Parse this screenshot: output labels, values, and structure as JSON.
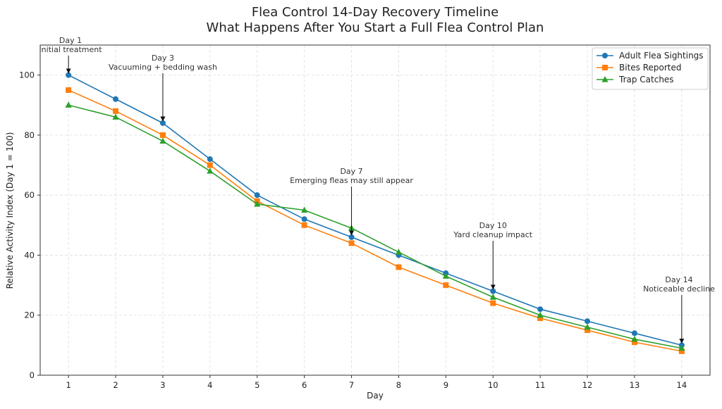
{
  "chart_data": {
    "type": "line",
    "title": "Flea Control 14-Day Recovery Timeline",
    "subtitle": "What Happens After You Start a Full Flea Control Plan",
    "xlabel": "Day",
    "ylabel": "Relative Activity Index (Day 1 = 100)",
    "x": [
      1,
      2,
      3,
      4,
      5,
      6,
      7,
      8,
      9,
      10,
      11,
      12,
      13,
      14
    ],
    "xlim": [
      0.4,
      14.6
    ],
    "ylim": [
      0,
      110
    ],
    "yticks": [
      0,
      20,
      40,
      60,
      80,
      100
    ],
    "grid": true,
    "legend_position": "top-right",
    "series": [
      {
        "name": "Adult Flea Sightings",
        "color": "#1f77b4",
        "marker": "circle",
        "values": [
          100,
          92,
          84,
          72,
          60,
          52,
          46,
          40,
          34,
          28,
          22,
          18,
          14,
          10
        ]
      },
      {
        "name": "Bites Reported",
        "color": "#ff7f0e",
        "marker": "square",
        "values": [
          95,
          88,
          80,
          70,
          58,
          50,
          44,
          36,
          30,
          24,
          19,
          15,
          11,
          8
        ]
      },
      {
        "name": "Trap Catches",
        "color": "#2ca02c",
        "marker": "triangle",
        "values": [
          90,
          86,
          78,
          68,
          57,
          55,
          49,
          41,
          33,
          26,
          20,
          16,
          12,
          9
        ]
      }
    ],
    "annotations": [
      {
        "day": 1,
        "value": 100,
        "line1": "Day 1",
        "line2": "Initial treatment"
      },
      {
        "day": 3,
        "value": 84,
        "line1": "Day 3",
        "line2": "Vacuuming + bedding wash"
      },
      {
        "day": 7,
        "value": 46,
        "line1": "Day 7",
        "line2": "Emerging fleas may still appear"
      },
      {
        "day": 10,
        "value": 28,
        "line1": "Day 10",
        "line2": "Yard cleanup impact"
      },
      {
        "day": 14,
        "value": 10,
        "line1": "Day 14",
        "line2": "Noticeable decline"
      }
    ]
  }
}
